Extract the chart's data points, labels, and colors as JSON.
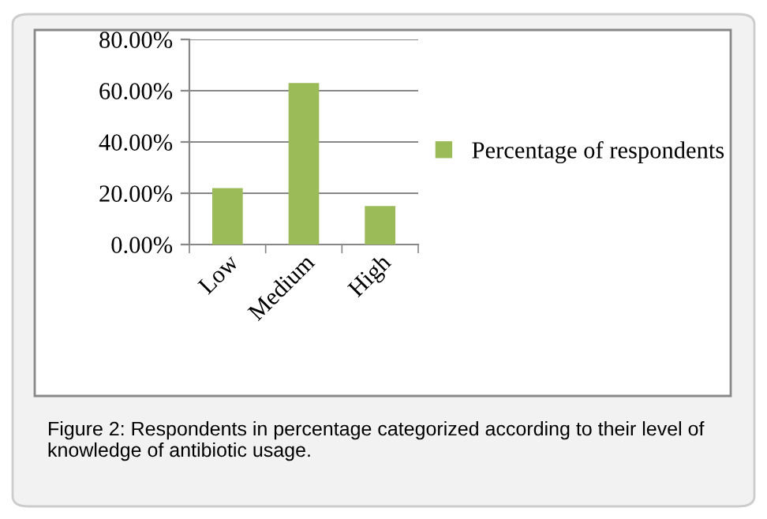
{
  "chart_data": {
    "type": "bar",
    "categories": [
      "Low",
      "Medium",
      "High"
    ],
    "series": [
      {
        "name": "Percentage of respondents",
        "color": "#9bbb59",
        "values": [
          22,
          63,
          15
        ]
      }
    ],
    "ylim": [
      0,
      80
    ],
    "yticks": [
      {
        "value": 0,
        "label": "0.00%"
      },
      {
        "value": 20,
        "label": "20.00%"
      },
      {
        "value": 40,
        "label": "40.00%"
      },
      {
        "value": 60,
        "label": "60.00%"
      },
      {
        "value": 80,
        "label": "80.00%"
      }
    ],
    "grid": "y",
    "legend": "right",
    "annotations": [
      "Figure 2: Respondents in percentage categorized according to their level of knowledge of antibiotic usage."
    ]
  }
}
